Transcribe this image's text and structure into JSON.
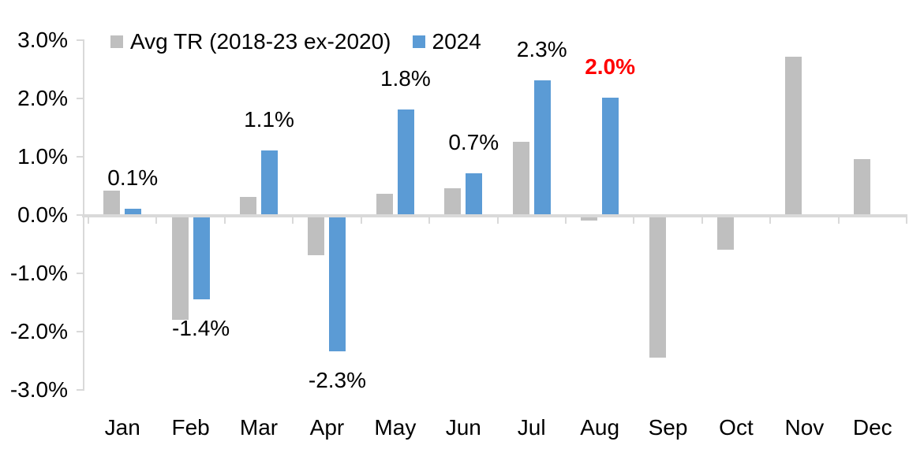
{
  "chart_data": {
    "type": "bar",
    "title": "",
    "xlabel": "",
    "ylabel": "",
    "categories": [
      "Jan",
      "Feb",
      "Mar",
      "Apr",
      "May",
      "Jun",
      "Jul",
      "Aug",
      "Sep",
      "Oct",
      "Nov",
      "Dec"
    ],
    "series": [
      {
        "name": "Avg TR (2018-23 ex-2020)",
        "color": "#BFBFBF",
        "values": [
          0.4,
          -1.75,
          0.3,
          -0.65,
          0.35,
          0.45,
          1.25,
          -0.06,
          -2.4,
          -0.55,
          2.7,
          0.95
        ]
      },
      {
        "name": "2024",
        "color": "#5B9BD5",
        "values": [
          0.1,
          -1.4,
          1.1,
          -2.3,
          1.8,
          0.7,
          2.3,
          2.0,
          null,
          null,
          null,
          null
        ],
        "data_labels": [
          {
            "text": "0.1%"
          },
          {
            "text": "-1.4%"
          },
          {
            "text": "1.1%"
          },
          {
            "text": "-2.3%"
          },
          {
            "text": "1.8%"
          },
          {
            "text": "0.7%"
          },
          {
            "text": "2.3%"
          },
          {
            "text": "2.0%",
            "color": "#FF0000",
            "bold": true
          },
          null,
          null,
          null,
          null
        ]
      }
    ],
    "ylim": [
      -3,
      3
    ],
    "y_ticks": [
      "3.0%",
      "2.0%",
      "1.0%",
      "0.0%",
      "-1.0%",
      "-2.0%",
      "-3.0%"
    ],
    "grid": false,
    "legend_position": "top",
    "axis_color": "#D9D9D9",
    "text_color": "#000000"
  }
}
